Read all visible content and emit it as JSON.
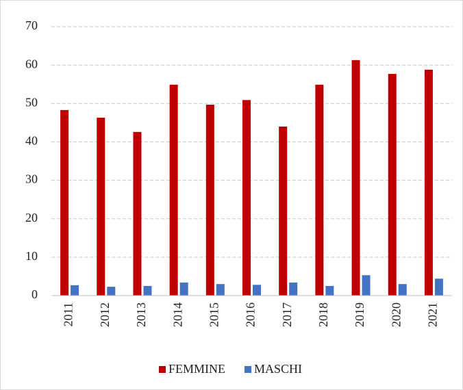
{
  "chart_data": {
    "type": "bar",
    "categories": [
      "2011",
      "2012",
      "2013",
      "2014",
      "2015",
      "2016",
      "2017",
      "2018",
      "2019",
      "2020",
      "2021"
    ],
    "series": [
      {
        "name": "FEMMINE",
        "color": "#c00000",
        "values": [
          48.3,
          46.3,
          42.6,
          54.9,
          49.7,
          50.9,
          44.0,
          54.9,
          61.3,
          57.7,
          58.8
        ]
      },
      {
        "name": "MASCHI",
        "color": "#4472c4",
        "values": [
          2.7,
          2.3,
          2.5,
          3.4,
          3.0,
          2.8,
          3.4,
          2.5,
          5.3,
          3.0,
          4.4
        ]
      }
    ],
    "ylim": [
      0,
      70
    ],
    "yticks": [
      0,
      10,
      20,
      30,
      40,
      50,
      60,
      70
    ],
    "grid": true,
    "legend": "bottom"
  }
}
